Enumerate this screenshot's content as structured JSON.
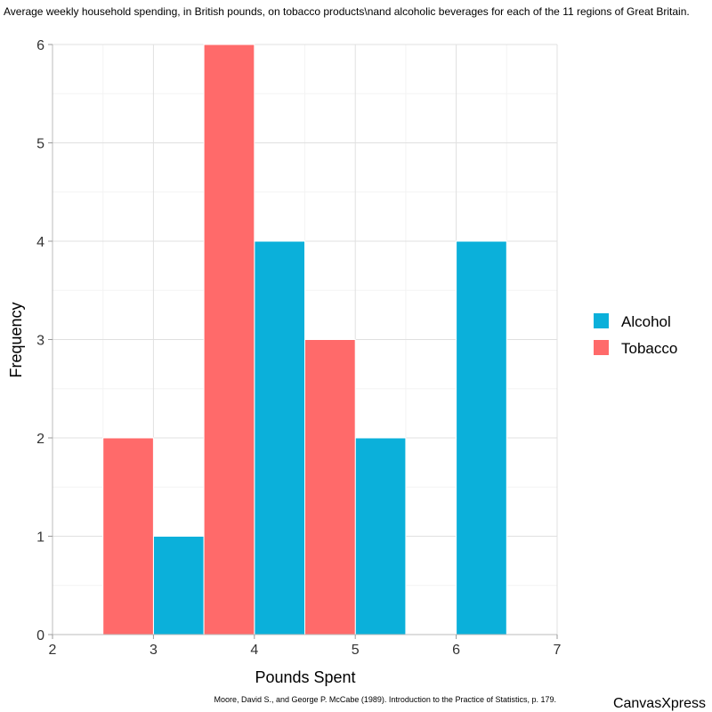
{
  "chart_data": {
    "type": "bar",
    "subtype": "histogram",
    "title": "Average weekly household spending, in British pounds, on tobacco products\\nand alcoholic beverages for each of the 11 regions of Great Britain.",
    "xlabel": "Pounds Spent",
    "ylabel": "Frequency",
    "xlim": [
      2,
      7
    ],
    "ylim": [
      0,
      6
    ],
    "x_ticks": [
      "2",
      "3",
      "4",
      "5",
      "6",
      "7"
    ],
    "y_ticks": [
      "0",
      "1",
      "2",
      "3",
      "4",
      "5",
      "6"
    ],
    "grid": true,
    "legend_position": "right",
    "bin_width": 0.5,
    "series": [
      {
        "name": "Alcohol",
        "color": "#0BB0DA",
        "bins": [
          [
            3.0,
            3.5,
            1
          ],
          [
            4.0,
            4.5,
            4
          ],
          [
            5.0,
            5.5,
            2
          ],
          [
            6.0,
            6.5,
            4
          ]
        ]
      },
      {
        "name": "Tobacco",
        "color": "#FF6A6A",
        "bins": [
          [
            2.5,
            3.0,
            2
          ],
          [
            3.5,
            4.0,
            6
          ],
          [
            4.5,
            5.0,
            3
          ]
        ]
      }
    ],
    "citation": "Moore, David S., and George P. McCabe (1989). Introduction to the Practice of Statistics, p. 179.",
    "brand": "CanvasXpress"
  }
}
